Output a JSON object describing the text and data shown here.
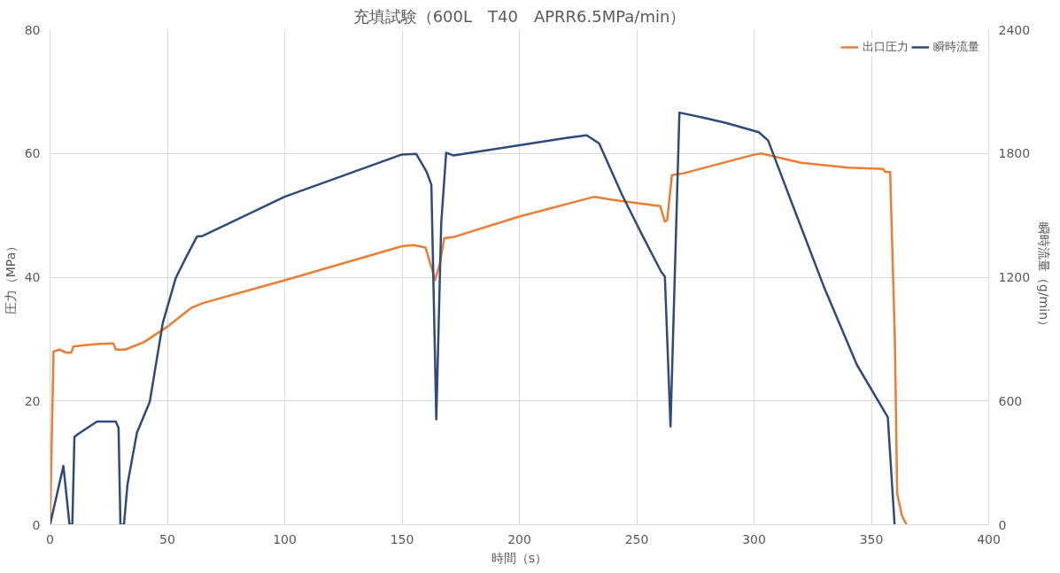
{
  "chart_data": {
    "type": "line",
    "title": "充填試験（600L　T40　APRR6.5MPa/min）",
    "xlabel": "時間（s）",
    "ylabel": "圧力（MPa）",
    "y2label": "瞬時流量（g/min）",
    "xlim": [
      0,
      400
    ],
    "xticks": [
      0,
      50,
      100,
      150,
      200,
      250,
      300,
      350,
      400
    ],
    "ylim": [
      0,
      80
    ],
    "yticks": [
      0,
      20,
      40,
      60,
      80
    ],
    "y2lim": [
      0,
      2400
    ],
    "y2ticks": [
      0,
      600,
      1200,
      1800,
      2400
    ],
    "grid": true,
    "legend": "top right",
    "line_style": "solid",
    "marker": "none",
    "series": [
      {
        "name": "出口圧力",
        "color": "#ed7d31",
        "x": [
          0,
          1.5,
          4,
          7,
          9,
          10,
          15,
          20,
          27,
          28,
          32,
          40,
          50,
          60,
          65,
          100,
          150,
          155,
          160,
          163,
          164,
          166,
          168,
          172,
          200,
          232,
          240,
          260,
          262,
          263,
          265,
          270,
          300,
          303,
          320,
          340,
          355,
          356,
          358,
          360,
          361,
          363,
          365
        ],
        "values": [
          0,
          28,
          28.3,
          27.8,
          27.8,
          28.8,
          29,
          29.2,
          29.3,
          28.3,
          28.3,
          29.5,
          32,
          35,
          35.8,
          39.5,
          45,
          45.2,
          44.8,
          41,
          39.5,
          42,
          46.3,
          46.5,
          49.8,
          53,
          52.5,
          51.5,
          49,
          49.2,
          56.5,
          56.8,
          59.8,
          60,
          58.5,
          57.7,
          57.5,
          57,
          57,
          30,
          5,
          1.5,
          0
        ]
      },
      {
        "name": "瞬時流量",
        "color": "#2f4b7c",
        "axis": "y2",
        "x": [
          0,
          5.7,
          8.3,
          9.5,
          10.4,
          12,
          20,
          28,
          29.2,
          30,
          31.5,
          33,
          37,
          42.5,
          48,
          53.6,
          58,
          62.6,
          65,
          100,
          150,
          156,
          160.4,
          162.5,
          164.6,
          166.7,
          168.8,
          172,
          200,
          220,
          228.7,
          234,
          243.8,
          252,
          260.4,
          262,
          264.4,
          268.2,
          278.6,
          288,
          302,
          306,
          316,
          330,
          343.8,
          357,
          359.9
        ],
        "values": [
          0,
          285,
          0,
          0,
          426,
          440,
          500,
          500,
          470,
          0,
          0,
          195,
          445,
          596,
          976,
          1197,
          1297,
          1397,
          1400,
          1590,
          1795,
          1798,
          1713,
          1648,
          511,
          1462,
          1803,
          1790,
          1840,
          1875,
          1888,
          1848,
          1598,
          1412,
          1227,
          1203,
          477,
          1998,
          1973,
          1948,
          1903,
          1863,
          1563,
          1147,
          776,
          521,
          0
        ]
      }
    ]
  }
}
